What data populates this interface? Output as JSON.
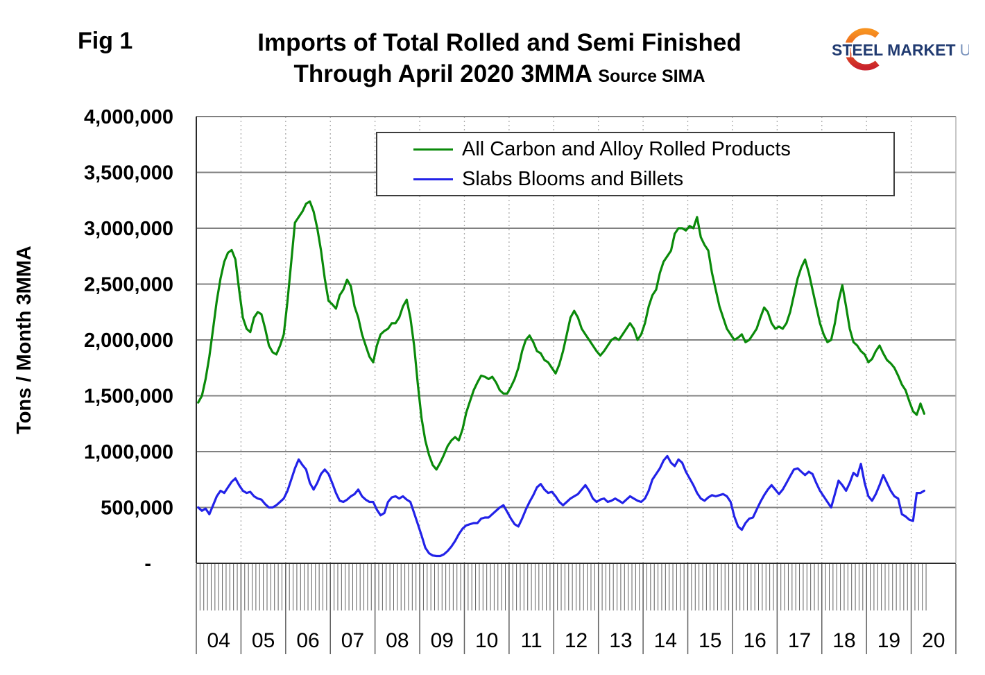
{
  "fig_label": "Fig 1",
  "title": {
    "line1": "Imports of Total Rolled and Semi Finished",
    "line2": "Through April 2020 3MMA",
    "source": "Source SIMA"
  },
  "logo": {
    "word1": "STEEL",
    "word2": "MARKET",
    "word3": "UPDATE",
    "navy": "#203a70",
    "light_blue": "#7b94bd",
    "arc_top": "#f79220",
    "arc_mid": "#e85a1e",
    "arc_bottom": "#c9222b"
  },
  "legend": {
    "entries": [
      {
        "label": "All Carbon and Alloy Rolled Products",
        "color": "#0a8a0a"
      },
      {
        "label": "Slabs Blooms and Billets",
        "color": "#2222e8"
      }
    ]
  },
  "chart_data": {
    "type": "line",
    "title": "Imports of Total Rolled and Semi Finished Through April 2020 3MMA",
    "source": "SIMA",
    "ylabel": "Tons / Month 3MMA",
    "xlabel": "",
    "ylim": [
      0,
      4000000
    ],
    "ytick_interval": 500000,
    "ytick_labels": [
      "-",
      "500,000",
      "1,000,000",
      "1,500,000",
      "2,000,000",
      "2,500,000",
      "3,000,000",
      "3,500,000",
      "4,000,000"
    ],
    "grid": "horizontal solid, vertical dashed at year boundaries",
    "legend_position": "top inside",
    "x_unit": "month",
    "x_start": "2004-01",
    "x_end": "2020-04",
    "years": [
      "04",
      "05",
      "06",
      "07",
      "08",
      "09",
      "10",
      "11",
      "12",
      "13",
      "14",
      "15",
      "16",
      "17",
      "18",
      "19",
      "20"
    ],
    "months_per_year": 12,
    "n_months": 196,
    "series": [
      {
        "name": "All Carbon and Alloy Rolled Products",
        "color": "#0a8a0a",
        "values": [
          1440000,
          1500000,
          1650000,
          1850000,
          2100000,
          2350000,
          2550000,
          2700000,
          2780000,
          2805000,
          2720000,
          2450000,
          2200000,
          2100000,
          2070000,
          2200000,
          2250000,
          2230000,
          2100000,
          1950000,
          1890000,
          1870000,
          1950000,
          2050000,
          2350000,
          2700000,
          3050000,
          3100000,
          3150000,
          3220000,
          3240000,
          3150000,
          3000000,
          2800000,
          2550000,
          2350000,
          2320000,
          2280000,
          2400000,
          2450000,
          2540000,
          2480000,
          2300000,
          2200000,
          2050000,
          1950000,
          1850000,
          1800000,
          1950000,
          2050000,
          2080000,
          2100000,
          2150000,
          2150000,
          2200000,
          2300000,
          2360000,
          2200000,
          1950000,
          1600000,
          1300000,
          1100000,
          970000,
          880000,
          840000,
          900000,
          970000,
          1050000,
          1100000,
          1130000,
          1100000,
          1200000,
          1350000,
          1450000,
          1550000,
          1620000,
          1680000,
          1670000,
          1650000,
          1670000,
          1620000,
          1550000,
          1520000,
          1520000,
          1580000,
          1650000,
          1750000,
          1900000,
          2000000,
          2040000,
          1980000,
          1900000,
          1880000,
          1820000,
          1800000,
          1750000,
          1700000,
          1780000,
          1900000,
          2050000,
          2200000,
          2260000,
          2200000,
          2100000,
          2050000,
          2000000,
          1950000,
          1900000,
          1860000,
          1900000,
          1950000,
          2000000,
          2020000,
          2000000,
          2050000,
          2100000,
          2150000,
          2100000,
          2000000,
          2050000,
          2150000,
          2300000,
          2400000,
          2450000,
          2600000,
          2700000,
          2750000,
          2800000,
          2950000,
          3000000,
          3000000,
          2980000,
          3020000,
          3000000,
          3100000,
          2920000,
          2850000,
          2800000,
          2600000,
          2450000,
          2300000,
          2200000,
          2100000,
          2050000,
          2000000,
          2020000,
          2050000,
          1980000,
          2000000,
          2050000,
          2100000,
          2200000,
          2290000,
          2250000,
          2150000,
          2100000,
          2120000,
          2100000,
          2150000,
          2250000,
          2400000,
          2550000,
          2650000,
          2720000,
          2600000,
          2450000,
          2300000,
          2150000,
          2050000,
          1980000,
          2000000,
          2150000,
          2350000,
          2490000,
          2300000,
          2100000,
          1980000,
          1950000,
          1900000,
          1870000,
          1800000,
          1830000,
          1900000,
          1950000,
          1880000,
          1820000,
          1790000,
          1750000,
          1680000,
          1600000,
          1550000,
          1450000,
          1360000,
          1330000,
          1430000,
          1340000
        ]
      },
      {
        "name": "Slabs Blooms and Billets",
        "color": "#2222e8",
        "values": [
          500000,
          470000,
          490000,
          440000,
          520000,
          600000,
          650000,
          630000,
          680000,
          730000,
          760000,
          700000,
          650000,
          630000,
          640000,
          600000,
          580000,
          570000,
          530000,
          500000,
          500000,
          520000,
          550000,
          580000,
          650000,
          750000,
          850000,
          930000,
          880000,
          840000,
          720000,
          660000,
          720000,
          800000,
          840000,
          800000,
          720000,
          630000,
          560000,
          550000,
          570000,
          600000,
          620000,
          660000,
          600000,
          570000,
          550000,
          550000,
          480000,
          430000,
          450000,
          550000,
          590000,
          600000,
          580000,
          600000,
          570000,
          550000,
          450000,
          350000,
          250000,
          140000,
          90000,
          70000,
          65000,
          65000,
          80000,
          110000,
          150000,
          200000,
          260000,
          310000,
          340000,
          350000,
          360000,
          360000,
          400000,
          410000,
          410000,
          440000,
          470000,
          500000,
          520000,
          460000,
          400000,
          350000,
          330000,
          400000,
          480000,
          550000,
          610000,
          680000,
          710000,
          660000,
          630000,
          640000,
          600000,
          550000,
          520000,
          550000,
          580000,
          600000,
          620000,
          660000,
          700000,
          650000,
          580000,
          550000,
          570000,
          580000,
          550000,
          560000,
          580000,
          560000,
          540000,
          570000,
          600000,
          580000,
          560000,
          550000,
          580000,
          650000,
          750000,
          800000,
          850000,
          920000,
          960000,
          900000,
          870000,
          930000,
          900000,
          820000,
          760000,
          700000,
          630000,
          580000,
          560000,
          590000,
          610000,
          600000,
          610000,
          620000,
          600000,
          550000,
          420000,
          330000,
          300000,
          360000,
          400000,
          410000,
          480000,
          550000,
          610000,
          660000,
          700000,
          660000,
          620000,
          660000,
          720000,
          780000,
          840000,
          850000,
          820000,
          790000,
          820000,
          800000,
          720000,
          650000,
          600000,
          550000,
          500000,
          620000,
          740000,
          700000,
          650000,
          720000,
          810000,
          780000,
          890000,
          720000,
          600000,
          560000,
          620000,
          700000,
          790000,
          720000,
          650000,
          600000,
          580000,
          440000,
          420000,
          390000,
          380000,
          630000,
          630000,
          650000
        ]
      }
    ]
  },
  "style": {
    "grid_color": "#808080",
    "dashed_grid_color": "#aaaaaa",
    "axis_dark": "#2a2a2a",
    "right_border": "#b3b3b3",
    "tick_color": "#606060",
    "text_color": "#000000"
  }
}
